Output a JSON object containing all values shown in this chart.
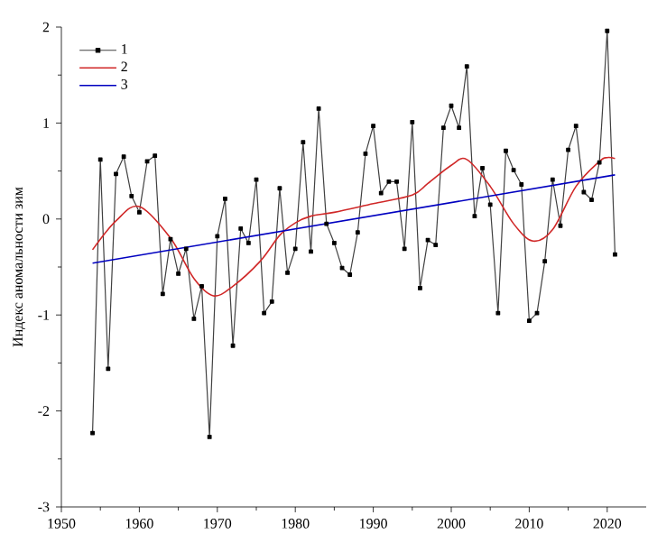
{
  "chart_data": {
    "type": "line",
    "ylabel": "Индекс аномальности зим",
    "xlim": [
      1950,
      2025
    ],
    "ylim": [
      -3,
      2
    ],
    "xticks": [
      1950,
      1960,
      1970,
      1980,
      1990,
      2000,
      2010,
      2020
    ],
    "yticks": [
      -3,
      -2,
      -1,
      0,
      1,
      2
    ],
    "legend": "top left",
    "grid": false,
    "series": [
      {
        "name": "1",
        "color": "#404040",
        "marker": "square",
        "x": [
          1954,
          1955,
          1956,
          1957,
          1958,
          1959,
          1960,
          1961,
          1962,
          1963,
          1964,
          1965,
          1966,
          1967,
          1968,
          1969,
          1970,
          1971,
          1972,
          1973,
          1974,
          1975,
          1976,
          1977,
          1978,
          1979,
          1980,
          1981,
          1982,
          1983,
          1984,
          1985,
          1986,
          1987,
          1988,
          1989,
          1990,
          1991,
          1992,
          1993,
          1994,
          1995,
          1996,
          1997,
          1998,
          1999,
          2000,
          2001,
          2002,
          2003,
          2004,
          2005,
          2006,
          2007,
          2008,
          2009,
          2010,
          2011,
          2012,
          2013,
          2014,
          2015,
          2016,
          2017,
          2018,
          2019,
          2020,
          2021
        ],
        "values": [
          -2.23,
          0.62,
          -1.56,
          0.47,
          0.65,
          0.24,
          0.07,
          0.6,
          0.66,
          -0.78,
          -0.21,
          -0.57,
          -0.31,
          -1.04,
          -0.7,
          -2.27,
          -0.18,
          0.21,
          -1.32,
          -0.1,
          -0.25,
          0.41,
          -0.98,
          -0.86,
          0.32,
          -0.56,
          -0.31,
          0.8,
          -0.34,
          1.15,
          -0.05,
          -0.25,
          -0.51,
          -0.58,
          -0.14,
          0.68,
          0.97,
          0.27,
          0.39,
          0.39,
          -0.31,
          1.01,
          -0.72,
          -0.22,
          -0.27,
          0.95,
          1.18,
          0.95,
          1.59,
          0.03,
          0.53,
          0.15,
          -0.98,
          0.71,
          0.51,
          0.36,
          -1.06,
          -0.98,
          -0.44,
          0.41,
          -0.07,
          0.72,
          0.97,
          0.28,
          0.2,
          0.59,
          1.96,
          -0.37
        ]
      },
      {
        "name": "2",
        "color": "#d02828",
        "x": [
          1954,
          1957,
          1960,
          1964,
          1967,
          1969.5,
          1972,
          1975.5,
          1978,
          1980,
          1982,
          1985,
          1990,
          1995,
          1997,
          2000,
          2002,
          2005,
          2008,
          2010.5,
          2013,
          2016,
          2019,
          2020,
          2021
        ],
        "values": [
          -0.32,
          -0.02,
          0.13,
          -0.2,
          -0.62,
          -0.8,
          -0.7,
          -0.44,
          -0.17,
          -0.04,
          0.03,
          0.07,
          0.16,
          0.25,
          0.37,
          0.56,
          0.62,
          0.34,
          -0.05,
          -0.23,
          -0.11,
          0.34,
          0.6,
          0.64,
          0.63
        ]
      },
      {
        "name": "3",
        "color": "#0000c0",
        "x": [
          1954,
          2021
        ],
        "values": [
          -0.46,
          0.46
        ]
      }
    ]
  }
}
